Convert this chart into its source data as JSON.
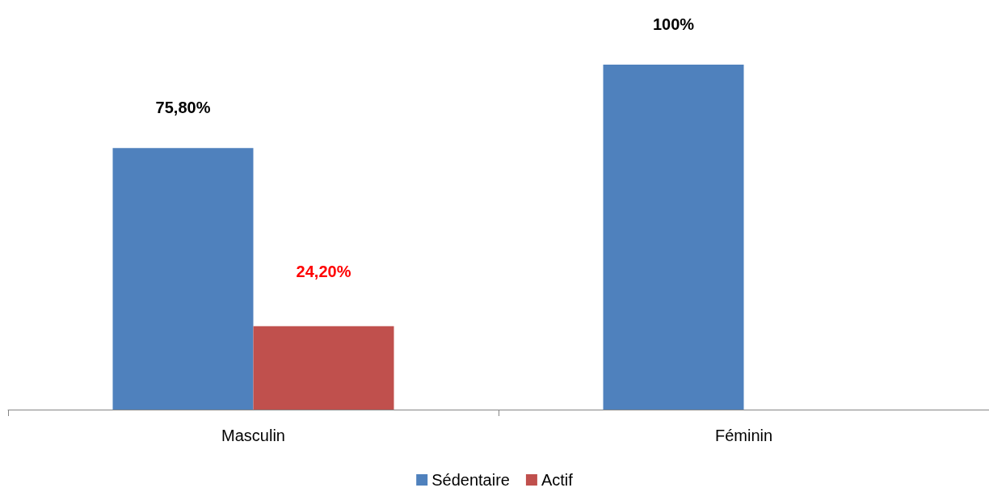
{
  "chart_data": {
    "type": "bar",
    "categories": [
      "Masculin",
      "Féminin"
    ],
    "series": [
      {
        "name": "Sédentaire",
        "color": "#4f81bd",
        "values": [
          75.8,
          100
        ],
        "value_labels": [
          "75,80%",
          "100%"
        ]
      },
      {
        "name": "Actif",
        "color": "#c0504d",
        "values": [
          24.2,
          null
        ],
        "value_labels": [
          "24,20%",
          null
        ]
      }
    ],
    "legend": "bottom",
    "grid": false
  }
}
